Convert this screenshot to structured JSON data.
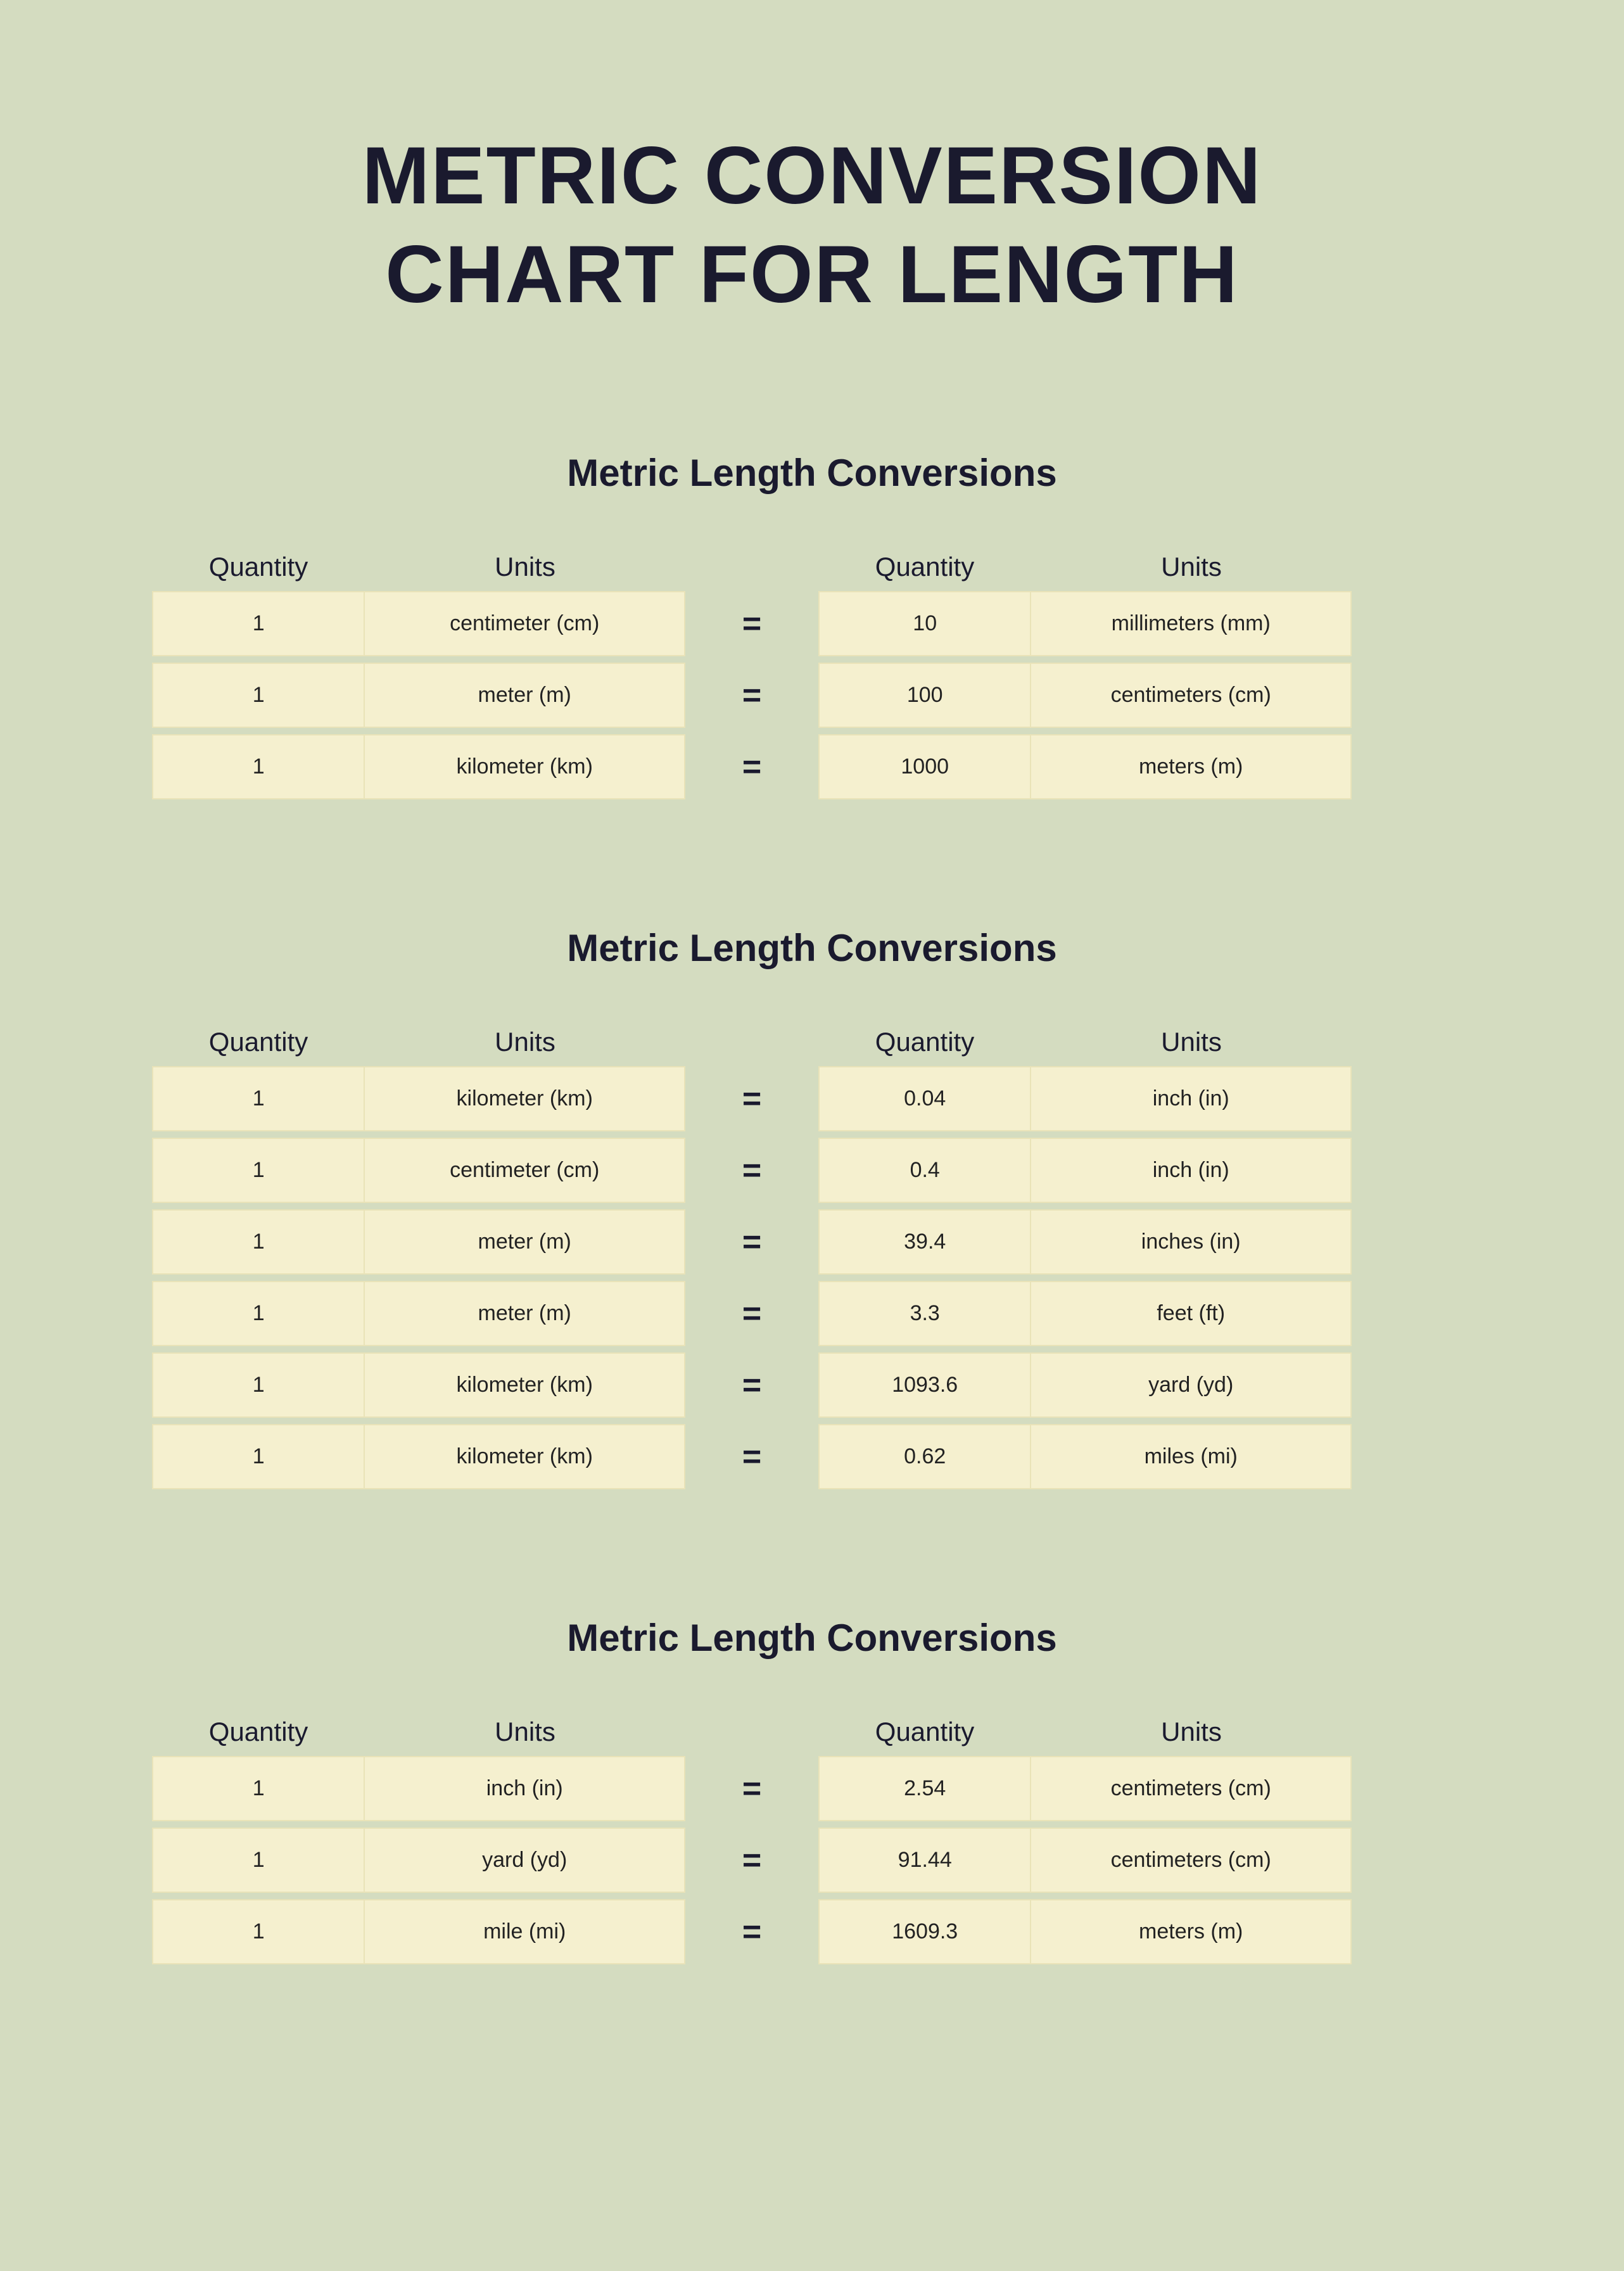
{
  "page": {
    "title_line1": "METRIC CONVERSION",
    "title_line2": "CHART FOR LENGTH",
    "background_color": "#d4dcc0",
    "cell_background": "#f5f0cf",
    "cell_border": "#e9e3b8",
    "text_color": "#1a1a2e",
    "title_fontsize": 128,
    "section_title_fontsize": 60,
    "header_fontsize": 42,
    "cell_fontsize": 34,
    "equals_symbol": "="
  },
  "headers": {
    "quantity": "Quantity",
    "units": "Units"
  },
  "sections": [
    {
      "title": "Metric Length Conversions",
      "rows": [
        {
          "left_qty": "1",
          "left_units": "centimeter (cm)",
          "right_qty": "10",
          "right_units": "millimeters (mm)"
        },
        {
          "left_qty": "1",
          "left_units": "meter (m)",
          "right_qty": "100",
          "right_units": "centimeters (cm)"
        },
        {
          "left_qty": "1",
          "left_units": "kilometer (km)",
          "right_qty": "1000",
          "right_units": "meters (m)"
        }
      ]
    },
    {
      "title": "Metric Length Conversions",
      "rows": [
        {
          "left_qty": "1",
          "left_units": "kilometer (km)",
          "right_qty": "0.04",
          "right_units": "inch (in)"
        },
        {
          "left_qty": "1",
          "left_units": "centimeter (cm)",
          "right_qty": "0.4",
          "right_units": "inch (in)"
        },
        {
          "left_qty": "1",
          "left_units": "meter (m)",
          "right_qty": "39.4",
          "right_units": "inches (in)"
        },
        {
          "left_qty": "1",
          "left_units": "meter (m)",
          "right_qty": "3.3",
          "right_units": "feet (ft)"
        },
        {
          "left_qty": "1",
          "left_units": "kilometer (km)",
          "right_qty": "1093.6",
          "right_units": "yard (yd)"
        },
        {
          "left_qty": "1",
          "left_units": "kilometer (km)",
          "right_qty": "0.62",
          "right_units": "miles (mi)"
        }
      ]
    },
    {
      "title": "Metric Length Conversions",
      "rows": [
        {
          "left_qty": "1",
          "left_units": "inch (in)",
          "right_qty": "2.54",
          "right_units": "centimeters (cm)"
        },
        {
          "left_qty": "1",
          "left_units": "yard (yd)",
          "right_qty": "91.44",
          "right_units": "centimeters (cm)"
        },
        {
          "left_qty": "1",
          "left_units": "mile (mi)",
          "right_qty": "1609.3",
          "right_units": "meters (m)"
        }
      ]
    }
  ]
}
